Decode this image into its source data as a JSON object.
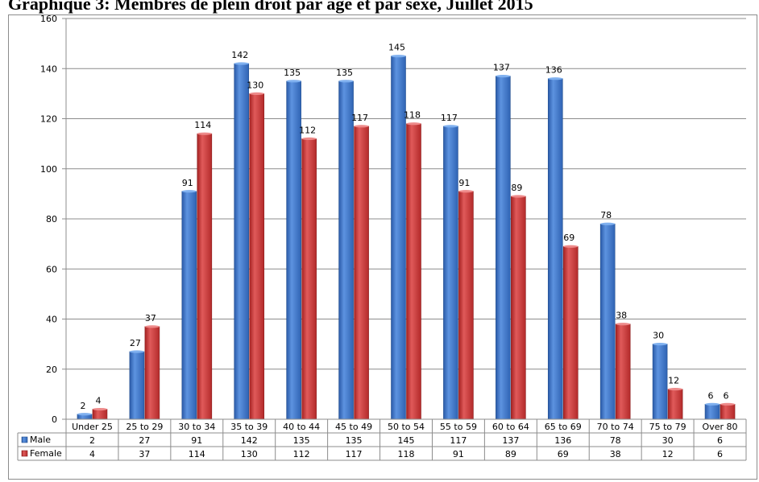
{
  "chart_data": {
    "type": "bar",
    "title": "Graphique 3: Membres de plein droit par âge et par sexe, Juillet 2015",
    "categories": [
      "Under 25",
      "25 to 29",
      "30 to 34",
      "35 to 39",
      "40 to 44",
      "45 to 49",
      "50 to 54",
      "55 to 59",
      "60 to 64",
      "65 to 69",
      "70 to 74",
      "75 to 79",
      "Over 80"
    ],
    "series": [
      {
        "name": "Male",
        "color": "#3a72c4",
        "values": [
          2,
          27,
          91,
          142,
          135,
          135,
          145,
          117,
          137,
          136,
          78,
          30,
          6
        ]
      },
      {
        "name": "Female",
        "color": "#c42f2f",
        "values": [
          4,
          37,
          114,
          130,
          112,
          117,
          118,
          91,
          89,
          69,
          38,
          12,
          6
        ]
      }
    ],
    "y_ticks": [
      "0",
      "20",
      "40",
      "60",
      "80",
      "100",
      "120",
      "140",
      "160"
    ],
    "ylim": [
      0,
      160
    ],
    "grid": true,
    "legend": "data-table"
  }
}
